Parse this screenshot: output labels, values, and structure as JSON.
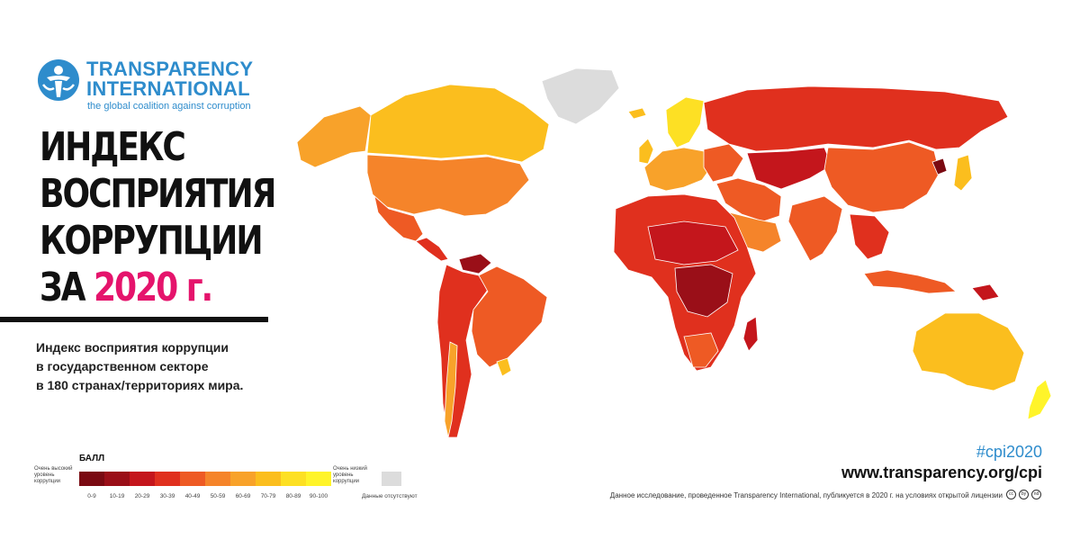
{
  "organization": {
    "name_line1": "TRANSPARENCY",
    "name_line2": "INTERNATIONAL",
    "tagline": "the global coalition against corruption"
  },
  "headline": {
    "line1": "ИНДЕКС",
    "line2": "ВОСПРИЯТИЯ",
    "line3": "КОРРУПЦИИ",
    "line4_prefix": "ЗА ",
    "line4_year": "2020 г."
  },
  "subtitle": {
    "line1": "Индекс восприятия коррупции",
    "line2": "в государственном секторе",
    "line3": "в 180 странах/территориях мира."
  },
  "legend": {
    "title": "БАЛЛ",
    "low_label": "Очень высокий уровень коррупции",
    "high_label": "Очень низкий уровень коррупции",
    "no_data_label": "Данные отсутствуют",
    "no_data_color": "#dcdcdc",
    "bins": [
      {
        "label": "0-9",
        "color": "#7a0a12"
      },
      {
        "label": "10-19",
        "color": "#9a0f18"
      },
      {
        "label": "20-29",
        "color": "#c4161c"
      },
      {
        "label": "30-39",
        "color": "#e0301e"
      },
      {
        "label": "40-49",
        "color": "#ee5a24"
      },
      {
        "label": "50-59",
        "color": "#f5842a"
      },
      {
        "label": "60-69",
        "color": "#f8a22a"
      },
      {
        "label": "70-79",
        "color": "#fbbe1e"
      },
      {
        "label": "80-89",
        "color": "#fde024"
      },
      {
        "label": "90-100",
        "color": "#fff42a"
      }
    ]
  },
  "regions": {
    "north_america": "#f5842a",
    "canada": "#fbbe1e",
    "alaska": "#f8a22a",
    "greenland": "#dcdcdc",
    "mexico": "#ee5a24",
    "central_america": "#e0301e",
    "south_america": "#e0301e",
    "venezuela": "#9a0f18",
    "brazil": "#ee5a24",
    "chile": "#f8a22a",
    "uruguay": "#fbbe1e",
    "africa": "#e0301e",
    "sahel": "#c4161c",
    "central_africa": "#9a0f18",
    "south_africa": "#ee5a24",
    "madagascar": "#c4161c",
    "europe": "#f8a22a",
    "nordics": "#fde024",
    "eastern_europe": "#ee5a24",
    "russia": "#e0301e",
    "central_asia": "#c4161c",
    "middle_east": "#ee5a24",
    "saudi": "#f5842a",
    "china": "#ee5a24",
    "india": "#ee5a24",
    "se_asia": "#e0301e",
    "indonesia": "#ee5a24",
    "japan": "#fbbe1e",
    "north_korea": "#7a0a12",
    "australia": "#fbbe1e",
    "new_zealand": "#fff42a",
    "png": "#c4161c",
    "iceland": "#fbbe1e",
    "uk": "#fbbe1e"
  },
  "footer": {
    "hashtag": "#cpi2020",
    "url": "www.transparency.org/cpi",
    "disclaimer": "Данное исследование, проведенное Transparency International, публикуется в 2020 г. на условиях открытой лицензии",
    "cc_icons": [
      "cc",
      "by",
      "nd"
    ]
  }
}
